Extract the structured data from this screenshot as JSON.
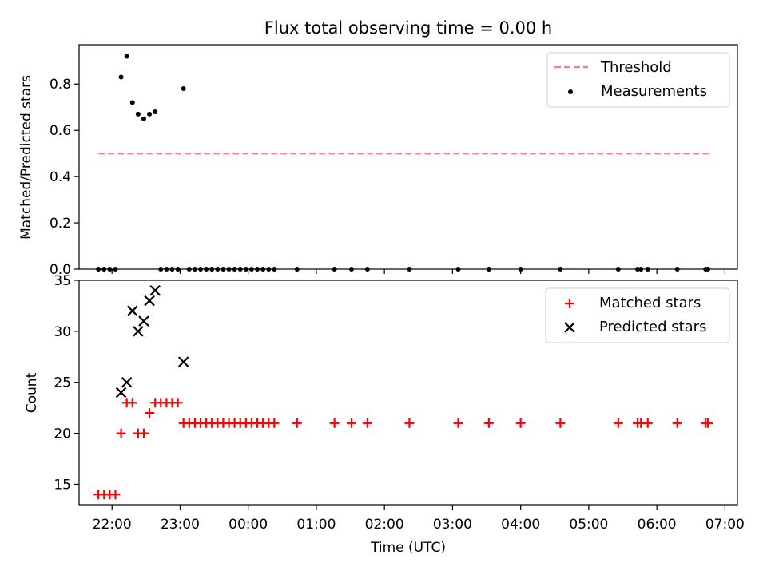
{
  "chart_data": [
    {
      "type": "line+scatter",
      "title": "Flux total observing time = 0.00 h",
      "ylabel": "Matched/Predicted stars",
      "xlim": [
        "21:31",
        "07:11"
      ],
      "ylim": [
        0,
        0.97
      ],
      "yticks": [
        0.0,
        0.2,
        0.4,
        0.6,
        0.8
      ],
      "ytick_labels": [
        "0.0",
        "0.2",
        "0.4",
        "0.6",
        "0.8"
      ],
      "grid": false,
      "legend_position": "top-right",
      "series": [
        {
          "name": "Threshold",
          "kind": "dashed-line",
          "color": "#ff7f7f",
          "x": [
            "21:48",
            "06:48"
          ],
          "y": [
            0.5,
            0.5
          ]
        },
        {
          "name": "Measurements",
          "kind": "scatter",
          "color": "#000000",
          "x": [
            "21:48",
            "21:53",
            "21:58",
            "22:03",
            "22:08",
            "22:13",
            "22:18",
            "22:23",
            "22:28",
            "22:33",
            "22:38",
            "22:43",
            "22:48",
            "22:53",
            "22:58",
            "23:03",
            "23:08",
            "23:13",
            "23:18",
            "23:23",
            "23:28",
            "23:33",
            "23:38",
            "23:43",
            "23:48",
            "23:53",
            "23:58",
            "00:03",
            "00:08",
            "00:13",
            "00:18",
            "00:23",
            "00:43",
            "01:16",
            "01:31",
            "01:45",
            "02:22",
            "03:05",
            "03:32",
            "04:00",
            "04:35",
            "05:26",
            "05:43",
            "05:46",
            "05:52",
            "06:18",
            "06:43",
            "06:45"
          ],
          "y": [
            0,
            0,
            0,
            0,
            0.83,
            0.92,
            0.72,
            0.67,
            0.65,
            0.67,
            0.68,
            0,
            0,
            0,
            0,
            0.78,
            0,
            0,
            0,
            0,
            0,
            0,
            0,
            0,
            0,
            0,
            0,
            0,
            0,
            0,
            0,
            0,
            0,
            0,
            0,
            0,
            0,
            0,
            0,
            0,
            0,
            0,
            0,
            0,
            0,
            0,
            0,
            0
          ]
        }
      ]
    },
    {
      "type": "scatter",
      "xlabel": "Time (UTC)",
      "ylabel": "Count",
      "xlim": [
        "21:31",
        "07:11"
      ],
      "ylim": [
        13,
        35
      ],
      "yticks": [
        15,
        20,
        25,
        30,
        35
      ],
      "ytick_labels": [
        "15",
        "20",
        "25",
        "30",
        "35"
      ],
      "xticks": [
        "22:00",
        "23:00",
        "00:00",
        "01:00",
        "02:00",
        "03:00",
        "04:00",
        "05:00",
        "06:00",
        "07:00"
      ],
      "grid": false,
      "legend_position": "top-right",
      "series": [
        {
          "name": "Matched stars",
          "kind": "scatter-plus",
          "color": "#ff0000",
          "x": [
            "21:48",
            "21:53",
            "21:58",
            "22:03",
            "22:08",
            "22:13",
            "22:18",
            "22:23",
            "22:28",
            "22:33",
            "22:38",
            "22:43",
            "22:48",
            "22:53",
            "22:58",
            "23:03",
            "23:08",
            "23:13",
            "23:18",
            "23:23",
            "23:28",
            "23:33",
            "23:38",
            "23:43",
            "23:48",
            "23:53",
            "23:58",
            "00:03",
            "00:08",
            "00:13",
            "00:18",
            "00:23",
            "00:43",
            "01:16",
            "01:31",
            "01:45",
            "02:22",
            "03:05",
            "03:32",
            "04:00",
            "04:35",
            "05:26",
            "05:43",
            "05:46",
            "05:52",
            "06:18",
            "06:43",
            "06:45"
          ],
          "y": [
            14,
            14,
            14,
            14,
            20,
            23,
            23,
            20,
            20,
            22,
            23,
            23,
            23,
            23,
            23,
            21,
            21,
            21,
            21,
            21,
            21,
            21,
            21,
            21,
            21,
            21,
            21,
            21,
            21,
            21,
            21,
            21,
            21,
            21,
            21,
            21,
            21,
            21,
            21,
            21,
            21,
            21,
            21,
            21,
            21,
            21,
            21,
            21
          ]
        },
        {
          "name": "Predicted stars",
          "kind": "scatter-x",
          "color": "#000000",
          "x": [
            "22:08",
            "22:13",
            "22:18",
            "22:23",
            "22:28",
            "22:33",
            "22:38",
            "23:03"
          ],
          "y": [
            24,
            25,
            32,
            30,
            31,
            33,
            34,
            27
          ]
        }
      ]
    }
  ]
}
